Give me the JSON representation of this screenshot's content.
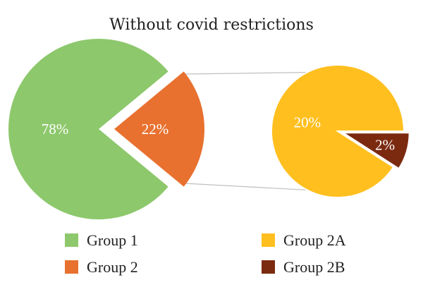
{
  "chart_data": {
    "type": "pie",
    "title": "Without covid restrictions",
    "primary_pie": {
      "slices": [
        {
          "name": "Group 1",
          "value": 78,
          "label": "78%",
          "color": "#8DC86C"
        },
        {
          "name": "Group 2",
          "value": 22,
          "label": "22%",
          "color": "#E8712F"
        }
      ]
    },
    "secondary_pie": {
      "slices": [
        {
          "name": "Group 2A",
          "value": 20,
          "label": "20%",
          "color": "#FFBF1F"
        },
        {
          "name": "Group 2B",
          "value": 2,
          "label": "2%",
          "color": "#7B2A10"
        }
      ]
    },
    "legend": {
      "placement": "bottom",
      "entries": [
        {
          "label": "Group 1",
          "color": "#8DC86C"
        },
        {
          "label": "Group 2",
          "color": "#E8712F"
        },
        {
          "label": "Group 2A",
          "color": "#FFBF1F"
        },
        {
          "label": "Group 2B",
          "color": "#7B2A10"
        }
      ]
    }
  }
}
